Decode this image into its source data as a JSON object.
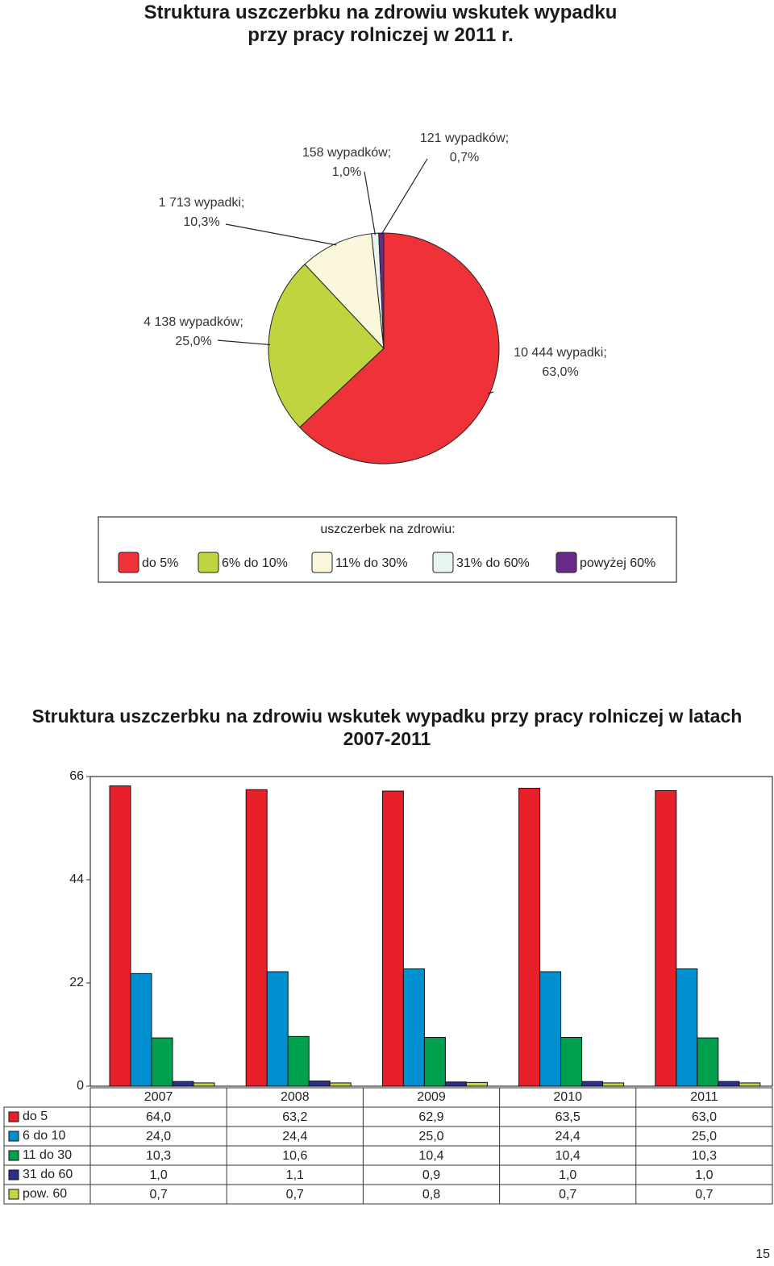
{
  "page_number": "15",
  "chart_data": [
    {
      "type": "pie",
      "title": "Struktura uszczerbku na zdrowiu wskutek wypadku przy pracy rolniczej w 2011 r.",
      "legend_title": "uszczerbek na zdrowiu:",
      "categories": [
        "do 5%",
        "6% do 10%",
        "11% do 30%",
        "31% do 60%",
        "powyżej 60%"
      ],
      "values": [
        63.0,
        25.0,
        10.3,
        1.0,
        0.7
      ],
      "value_labels": [
        "10 444 wypadki;\n63,0%",
        "4 138 wypadków;\n25,0%",
        "1 713 wypadki;\n10,3%",
        "158 wypadków;\n1,0%",
        "121 wypadków;\n0,7%"
      ],
      "colors": [
        "#ee3237",
        "#bfd43f",
        "#fbf7dc",
        "#e6f4f2",
        "#6a2a8a"
      ]
    },
    {
      "type": "bar",
      "title": "Struktura uszczerbku na zdrowiu wskutek wypadku przy pracy rolniczej w latach 2007-2011",
      "categories": [
        "2007",
        "2008",
        "2009",
        "2010",
        "2011"
      ],
      "series": [
        {
          "name": "do 5",
          "color": "#e8202a",
          "values": [
            64.0,
            63.2,
            62.9,
            63.5,
            63.0
          ],
          "value_labels": [
            "64,0",
            "63,2",
            "62,9",
            "63,5",
            "63,0"
          ]
        },
        {
          "name": "6 do 10",
          "color": "#0090d0",
          "values": [
            24.0,
            24.4,
            25.0,
            24.4,
            25.0
          ],
          "value_labels": [
            "24,0",
            "24,4",
            "25,0",
            "24,4",
            "25,0"
          ]
        },
        {
          "name": "11 do 30",
          "color": "#00a04f",
          "values": [
            10.3,
            10.6,
            10.4,
            10.4,
            10.3
          ],
          "value_labels": [
            "10,3",
            "10,6",
            "10,4",
            "10,4",
            "10,3"
          ]
        },
        {
          "name": "31 do 60",
          "color": "#2b2f8f",
          "values": [
            1.0,
            1.1,
            0.9,
            1.0,
            1.0
          ],
          "value_labels": [
            "1,0",
            "1,1",
            "0,9",
            "1,0",
            "1,0"
          ]
        },
        {
          "name": "pow. 60",
          "color": "#c5d443",
          "values": [
            0.7,
            0.7,
            0.8,
            0.7,
            0.7
          ],
          "value_labels": [
            "0,7",
            "0,7",
            "0,8",
            "0,7",
            "0,7"
          ]
        }
      ],
      "ylim": [
        0,
        66
      ],
      "yticks": [
        0,
        22,
        44,
        66
      ],
      "legend": "table"
    }
  ]
}
